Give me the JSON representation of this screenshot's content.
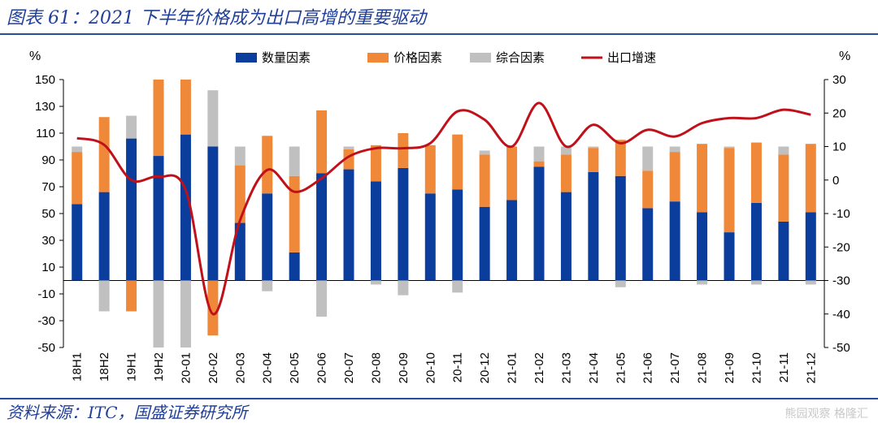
{
  "figure": {
    "title": "图表 61：2021 下半年价格成为出口高增的重要驱动",
    "source": "资料来源：ITC，国盛证券研究所",
    "watermark": "熊园观察   格隆汇"
  },
  "chart_data": {
    "type": "bar",
    "categories": [
      "18H1",
      "18H2",
      "19H1",
      "19H2",
      "20-01",
      "20-02",
      "20-03",
      "20-04",
      "20-05",
      "20-06",
      "20-07",
      "20-08",
      "20-09",
      "20-10",
      "20-11",
      "20-12",
      "21-01",
      "21-02",
      "21-03",
      "21-04",
      "21-05",
      "21-06",
      "21-07",
      "21-08",
      "21-09",
      "21-10",
      "21-11",
      "21-12"
    ],
    "left_unit": "%",
    "right_unit": "%",
    "ylim_left": [
      -50,
      150
    ],
    "yticks_left": [
      150,
      130,
      110,
      90,
      70,
      50,
      30,
      10,
      -10,
      -30,
      -50
    ],
    "ylim_right": [
      -50,
      30
    ],
    "yticks_right": [
      30,
      20,
      10,
      0,
      -10,
      -20,
      -30,
      -40,
      -50
    ],
    "legend_position": "top",
    "colors": {
      "quantity": "#0a3d9c",
      "price": "#f0883a",
      "composite": "#c0c0c0",
      "growth": "#c0101a"
    },
    "series": [
      {
        "name": "数量因素",
        "type": "bar",
        "axis": "left",
        "values": [
          57,
          66,
          106,
          93,
          109,
          100,
          43,
          65,
          21,
          80,
          83,
          74,
          84,
          65,
          68,
          55,
          60,
          85,
          66,
          81,
          78,
          54,
          59,
          51,
          36,
          58,
          44,
          51
        ]
      },
      {
        "name": "价格因素",
        "type": "bar",
        "axis": "left",
        "values": [
          39,
          56,
          -23,
          57,
          41,
          -41,
          43,
          43,
          57,
          47,
          15,
          27,
          26,
          36,
          41,
          39,
          40,
          4,
          28,
          18,
          27,
          28,
          37,
          51,
          63,
          45,
          50,
          51
        ]
      },
      {
        "name": "综合因素",
        "type": "bar",
        "axis": "left",
        "values": [
          4,
          -23,
          17,
          -50,
          -50,
          42,
          14,
          -8,
          22,
          -27,
          2,
          -3,
          -11,
          0,
          -9,
          3,
          0,
          11,
          6,
          1,
          -5,
          18,
          4,
          -3,
          1,
          -3,
          6,
          -3
        ]
      },
      {
        "name": "出口增速",
        "type": "line",
        "axis": "right",
        "values": [
          12.5,
          10.5,
          0,
          1,
          -3,
          -40,
          -12,
          3,
          -3.5,
          0.5,
          7,
          9.5,
          9.5,
          11,
          20.5,
          18,
          10,
          23,
          10,
          16.5,
          11,
          15,
          13,
          17,
          18.5,
          18.5,
          21,
          19.5
        ]
      }
    ]
  }
}
